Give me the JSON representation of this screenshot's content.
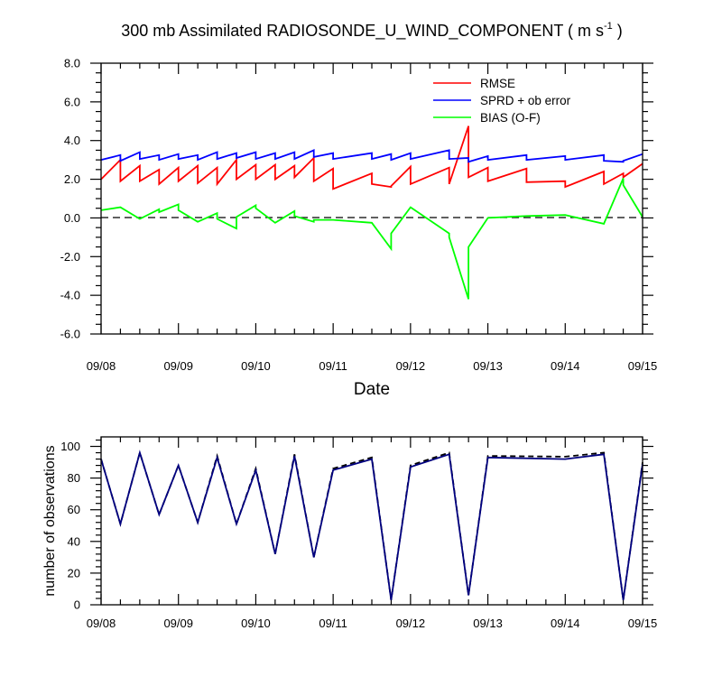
{
  "chart_data": [
    {
      "type": "line",
      "title": "300 mb Assimilated RADIOSONDE_U_WIND_COMPONENT ( m s",
      "title_superscript": "-1",
      "title_suffix": " )",
      "xlabel": "Date",
      "ylabel": "",
      "xlim": [
        0,
        7
      ],
      "ylim": [
        -6,
        8
      ],
      "x_ticks": [
        0,
        1,
        2,
        3,
        4,
        5,
        6,
        7
      ],
      "x_tick_labels": [
        "09/08",
        "09/09",
        "09/10",
        "09/11",
        "09/12",
        "09/13",
        "09/14",
        "09/15"
      ],
      "y_ticks": [
        -6,
        -4,
        -2,
        0,
        2,
        4,
        6,
        8
      ],
      "y_tick_labels": [
        "-6.0",
        "-4.0",
        "-2.0",
        "0.0",
        "2.0",
        "4.0",
        "6.0",
        "8.0"
      ],
      "zero_line": "dashed",
      "legend_position": "top-right",
      "legend": [
        "RMSE",
        "SPRD + ob error",
        "BIAS (O-F)"
      ],
      "series": [
        {
          "name": "RMSE",
          "color": "#ff0000",
          "points": [
            [
              0,
              2.0
            ],
            [
              0.25,
              3.0
            ],
            [
              0.25,
              1.9
            ],
            [
              0.5,
              2.7
            ],
            [
              0.5,
              1.9
            ],
            [
              0.75,
              2.5
            ],
            [
              0.75,
              1.75
            ],
            [
              1.0,
              2.6
            ],
            [
              1.0,
              1.9
            ],
            [
              1.25,
              2.7
            ],
            [
              1.25,
              1.8
            ],
            [
              1.5,
              2.6
            ],
            [
              1.5,
              1.75
            ],
            [
              1.75,
              3.0
            ],
            [
              1.75,
              2.0
            ],
            [
              2.0,
              2.75
            ],
            [
              2.0,
              2.0
            ],
            [
              2.25,
              2.75
            ],
            [
              2.25,
              2.0
            ],
            [
              2.5,
              2.7
            ],
            [
              2.5,
              2.1
            ],
            [
              2.75,
              3.1
            ],
            [
              2.75,
              1.9
            ],
            [
              3.0,
              2.55
            ],
            [
              3.0,
              1.5
            ],
            [
              3.5,
              2.3
            ],
            [
              3.5,
              1.75
            ],
            [
              3.75,
              1.6
            ],
            [
              3.75,
              1.65
            ],
            [
              4.0,
              2.65
            ],
            [
              4.0,
              1.75
            ],
            [
              4.5,
              2.6
            ],
            [
              4.5,
              1.75
            ],
            [
              4.75,
              4.75
            ],
            [
              4.75,
              2.1
            ],
            [
              5.0,
              2.6
            ],
            [
              5.0,
              1.9
            ],
            [
              5.5,
              2.55
            ],
            [
              5.5,
              1.85
            ],
            [
              6.0,
              1.9
            ],
            [
              6.0,
              1.6
            ],
            [
              6.5,
              2.4
            ],
            [
              6.5,
              1.75
            ],
            [
              6.75,
              2.3
            ],
            [
              6.75,
              2.1
            ],
            [
              7.0,
              2.8
            ]
          ]
        },
        {
          "name": "SPRD + ob error",
          "color": "#0000ff",
          "points": [
            [
              0,
              3.0
            ],
            [
              0.25,
              3.25
            ],
            [
              0.25,
              2.95
            ],
            [
              0.5,
              3.4
            ],
            [
              0.5,
              3.05
            ],
            [
              0.75,
              3.25
            ],
            [
              0.75,
              3.0
            ],
            [
              1.0,
              3.3
            ],
            [
              1.0,
              3.05
            ],
            [
              1.25,
              3.25
            ],
            [
              1.25,
              3.0
            ],
            [
              1.5,
              3.4
            ],
            [
              1.5,
              3.05
            ],
            [
              1.75,
              3.35
            ],
            [
              1.75,
              3.1
            ],
            [
              2.0,
              3.4
            ],
            [
              2.0,
              3.05
            ],
            [
              2.25,
              3.35
            ],
            [
              2.25,
              3.05
            ],
            [
              2.5,
              3.4
            ],
            [
              2.5,
              3.05
            ],
            [
              2.75,
              3.5
            ],
            [
              2.75,
              3.15
            ],
            [
              3.0,
              3.35
            ],
            [
              3.0,
              3.05
            ],
            [
              3.5,
              3.35
            ],
            [
              3.5,
              3.05
            ],
            [
              3.75,
              3.3
            ],
            [
              3.75,
              3.0
            ],
            [
              4.0,
              3.35
            ],
            [
              4.0,
              3.05
            ],
            [
              4.5,
              3.5
            ],
            [
              4.5,
              3.05
            ],
            [
              4.75,
              3.1
            ],
            [
              4.75,
              2.9
            ],
            [
              5.0,
              3.2
            ],
            [
              5.0,
              3.0
            ],
            [
              5.5,
              3.25
            ],
            [
              5.5,
              3.0
            ],
            [
              6.0,
              3.2
            ],
            [
              6.0,
              3.0
            ],
            [
              6.5,
              3.25
            ],
            [
              6.5,
              2.95
            ],
            [
              6.75,
              2.9
            ],
            [
              6.75,
              2.95
            ],
            [
              7.0,
              3.3
            ]
          ]
        },
        {
          "name": "BIAS (O-F)",
          "color": "#00ff00",
          "points": [
            [
              0,
              0.4
            ],
            [
              0.25,
              0.55
            ],
            [
              0.5,
              -0.05
            ],
            [
              0.75,
              0.45
            ],
            [
              0.75,
              0.3
            ],
            [
              1.0,
              0.7
            ],
            [
              1.0,
              0.4
            ],
            [
              1.25,
              -0.2
            ],
            [
              1.5,
              0.25
            ],
            [
              1.5,
              -0.05
            ],
            [
              1.75,
              -0.55
            ],
            [
              1.75,
              0.05
            ],
            [
              2.0,
              0.65
            ],
            [
              2.0,
              0.5
            ],
            [
              2.25,
              -0.25
            ],
            [
              2.5,
              0.35
            ],
            [
              2.5,
              0.1
            ],
            [
              2.75,
              -0.2
            ],
            [
              2.75,
              -0.1
            ],
            [
              3.0,
              -0.1
            ],
            [
              3.5,
              -0.25
            ],
            [
              3.75,
              -1.6
            ],
            [
              3.75,
              -0.8
            ],
            [
              4.0,
              0.55
            ],
            [
              4.5,
              -0.8
            ],
            [
              4.5,
              -1.0
            ],
            [
              4.75,
              -4.2
            ],
            [
              4.75,
              -1.5
            ],
            [
              5.0,
              0.0
            ],
            [
              5.5,
              0.1
            ],
            [
              6.0,
              0.15
            ],
            [
              6.5,
              -0.3
            ],
            [
              6.75,
              2.05
            ],
            [
              6.75,
              1.7
            ],
            [
              7.0,
              0.05
            ]
          ]
        }
      ]
    },
    {
      "type": "line",
      "title": "",
      "xlabel": "",
      "ylabel": "number of observations",
      "xlim": [
        0,
        7
      ],
      "ylim": [
        0,
        106
      ],
      "x_ticks": [
        0,
        1,
        2,
        3,
        4,
        5,
        6,
        7
      ],
      "x_tick_labels": [
        "09/08",
        "09/09",
        "09/10",
        "09/11",
        "09/12",
        "09/13",
        "09/14",
        "09/15"
      ],
      "y_ticks": [
        0,
        20,
        40,
        60,
        80,
        100
      ],
      "y_tick_labels": [
        "0",
        "20",
        "40",
        "60",
        "80",
        "100"
      ],
      "series": [
        {
          "name": "observations (dashed)",
          "color": "#000000",
          "dashed": true,
          "points": [
            [
              0,
              92
            ],
            [
              0.25,
              51
            ],
            [
              0.5,
              96
            ],
            [
              0.75,
              57
            ],
            [
              1.0,
              88
            ],
            [
              1.25,
              52
            ],
            [
              1.5,
              94
            ],
            [
              1.75,
              51
            ],
            [
              2.0,
              86
            ],
            [
              2.25,
              32
            ],
            [
              2.5,
              95
            ],
            [
              2.75,
              30
            ],
            [
              3.0,
              86
            ],
            [
              3.5,
              93
            ],
            [
              3.75,
              3
            ],
            [
              4.0,
              88
            ],
            [
              4.5,
              96
            ],
            [
              4.75,
              6
            ],
            [
              5.0,
              94
            ],
            [
              6.0,
              93.5
            ],
            [
              6.5,
              96
            ],
            [
              6.75,
              3
            ],
            [
              7.0,
              90
            ]
          ]
        },
        {
          "name": "observations (solid)",
          "color": "#00007f",
          "dashed": false,
          "points": [
            [
              0,
              92
            ],
            [
              0.25,
              51
            ],
            [
              0.5,
              96
            ],
            [
              0.75,
              57
            ],
            [
              1.0,
              88
            ],
            [
              1.25,
              52
            ],
            [
              1.5,
              93
            ],
            [
              1.75,
              51
            ],
            [
              2.0,
              85
            ],
            [
              2.25,
              32
            ],
            [
              2.5,
              94
            ],
            [
              2.75,
              30
            ],
            [
              3.0,
              85
            ],
            [
              3.5,
              92
            ],
            [
              3.75,
              3
            ],
            [
              4.0,
              87
            ],
            [
              4.5,
              95
            ],
            [
              4.75,
              6
            ],
            [
              5.0,
              93
            ],
            [
              6.0,
              92
            ],
            [
              6.5,
              95
            ],
            [
              6.75,
              3
            ],
            [
              7.0,
              89
            ]
          ]
        }
      ]
    }
  ]
}
